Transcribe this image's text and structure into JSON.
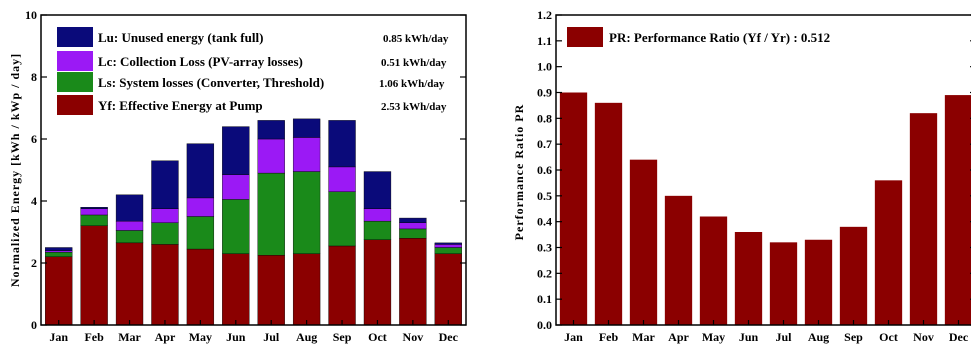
{
  "chart_data": [
    {
      "type": "bar",
      "stacked": true,
      "categories": [
        "Jan",
        "Feb",
        "Mar",
        "Apr",
        "May",
        "Jun",
        "Jul",
        "Aug",
        "Sep",
        "Oct",
        "Nov",
        "Dec"
      ],
      "ylabel": "Normalized Energy [kWh / kWp / day]",
      "ylim": [
        0,
        10
      ],
      "yticks": [
        "0",
        "2",
        "4",
        "6",
        "8",
        "10"
      ],
      "legend_position": "top-left",
      "series": [
        {
          "name": "Yf: Effective Energy at Pump",
          "value_label": "2.53 kWh/day",
          "color": "#8b0000",
          "values": [
            2.2,
            3.2,
            2.65,
            2.6,
            2.45,
            2.3,
            2.25,
            2.3,
            2.55,
            2.75,
            2.8,
            2.3
          ]
        },
        {
          "name": "Ls: System losses (Converter, Threshold)",
          "value_label": "1.06 kWh/day",
          "color": "#1a8a1a",
          "values": [
            0.15,
            0.35,
            0.4,
            0.7,
            1.05,
            1.75,
            2.65,
            2.65,
            1.75,
            0.6,
            0.3,
            0.2
          ]
        },
        {
          "name": "Lc: Collection Loss (PV-array losses)",
          "value_label": "0.51 kWh/day",
          "color": "#9b19f5",
          "values": [
            0.05,
            0.2,
            0.3,
            0.45,
            0.6,
            0.8,
            1.1,
            1.1,
            0.8,
            0.4,
            0.2,
            0.1
          ]
        },
        {
          "name": "Lu: Unused energy (tank full)",
          "value_label": "0.85 kWh/day",
          "color": "#0a0a7a",
          "values": [
            0.1,
            0.05,
            0.85,
            1.55,
            1.75,
            1.55,
            0.6,
            0.6,
            1.5,
            1.2,
            0.15,
            0.05
          ]
        }
      ]
    },
    {
      "type": "bar",
      "categories": [
        "Jan",
        "Feb",
        "Mar",
        "Apr",
        "May",
        "Jun",
        "Jul",
        "Aug",
        "Sep",
        "Oct",
        "Nov",
        "Dec"
      ],
      "ylabel": "Performance Ratio PR",
      "ylim": [
        0,
        1.2
      ],
      "yticks": [
        "0.0",
        "0.1",
        "0.2",
        "0.3",
        "0.4",
        "0.5",
        "0.6",
        "0.7",
        "0.8",
        "0.9",
        "1.0",
        "1.1",
        "1.2"
      ],
      "legend_position": "top-left",
      "series": [
        {
          "name": "PR: Performance Ratio (Yf / Yr) : 0.512",
          "color": "#8b0000",
          "values": [
            0.9,
            0.86,
            0.64,
            0.5,
            0.42,
            0.36,
            0.32,
            0.33,
            0.38,
            0.56,
            0.82,
            0.89
          ]
        }
      ]
    }
  ]
}
